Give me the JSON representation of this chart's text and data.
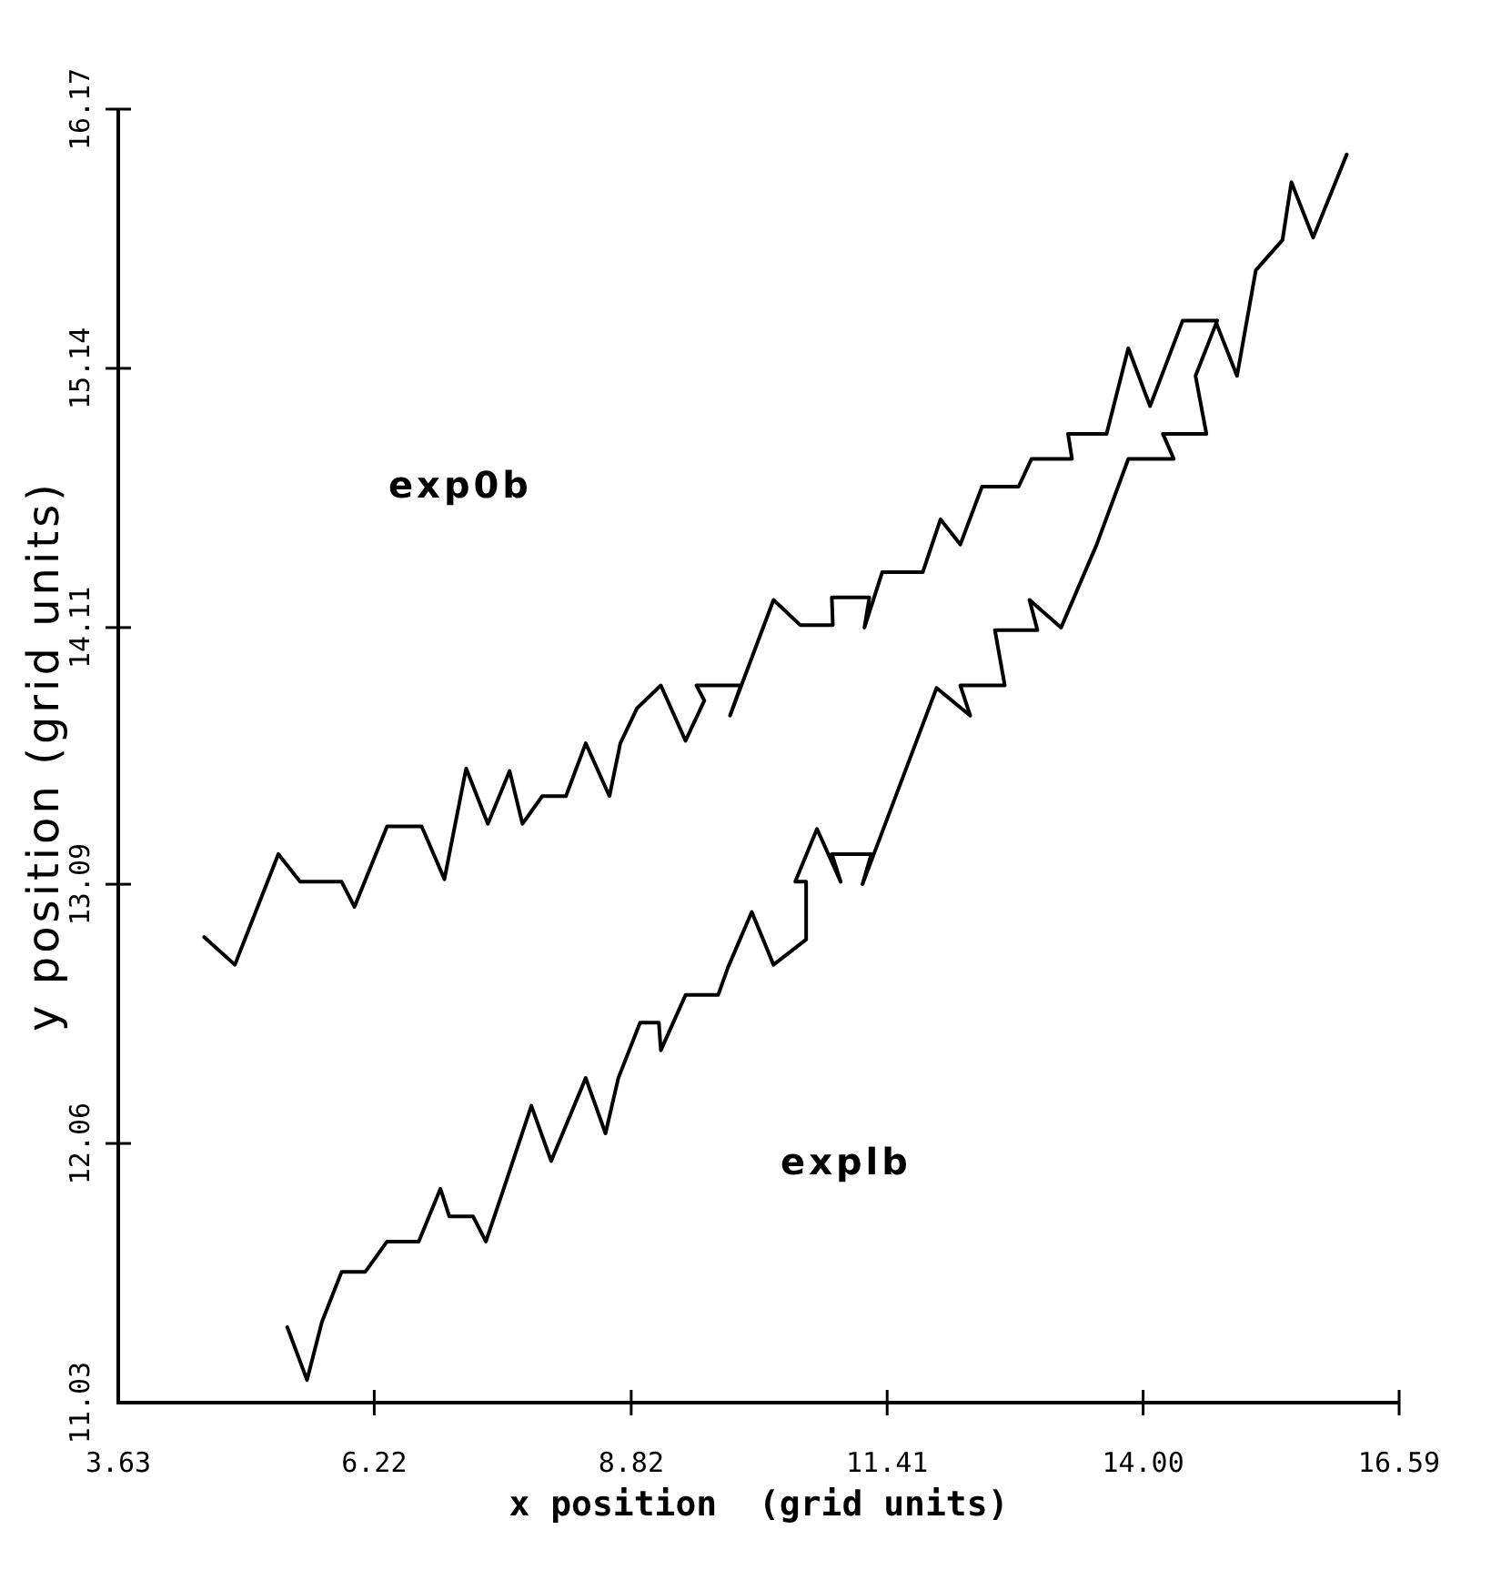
{
  "chart_data": {
    "type": "line",
    "xlabel": "x position  (grid units)",
    "ylabel": "y position (grid units)",
    "xlim": [
      3.63,
      16.59
    ],
    "xticks": [
      3.63,
      6.22,
      8.82,
      11.41,
      {
        "value": 14,
        "label": "14.00"
      },
      16.59
    ],
    "ylim": [
      11.03,
      16.17
    ],
    "yticks": [
      11.03,
      12.06,
      13.09,
      14.11,
      15.14,
      16.17
    ],
    "grid": false,
    "marker": "none",
    "line_style": "solid",
    "series": [
      {
        "color": "#000000",
        "x": [
          4.5,
          4.81,
          5.25,
          5.47,
          5.89,
          6.02,
          6.35,
          6.7,
          6.93,
          7.15,
          7.37,
          7.59,
          7.72,
          7.92,
          8.16,
          8.36,
          8.6,
          8.71,
          8.88,
          9.12,
          9.37,
          9.56,
          9.48,
          9.93,
          9.82,
          10.26,
          10.53,
          10.86,
          10.85,
          11.23,
          11.18,
          11.36,
          11.77,
          11.95,
          12.15,
          12.37,
          12.74,
          12.87,
          13.28,
          13.24,
          13.63,
          13.85,
          14.07,
          14.4,
          14.73,
          14.95,
          15.14,
          15.41,
          15.5,
          15.72,
          16.06
        ],
        "values": [
          12.88,
          12.77,
          13.21,
          13.1,
          13.1,
          13.0,
          13.32,
          13.32,
          13.11,
          13.55,
          13.33,
          13.54,
          13.33,
          13.44,
          13.44,
          13.65,
          13.44,
          13.65,
          13.79,
          13.88,
          13.66,
          13.82,
          13.88,
          13.88,
          13.76,
          14.22,
          14.12,
          14.12,
          14.23,
          14.23,
          14.11,
          14.33,
          14.33,
          14.54,
          14.44,
          14.67,
          14.67,
          14.78,
          14.78,
          14.88,
          14.88,
          15.22,
          14.99,
          15.33,
          15.33,
          15.11,
          15.53,
          15.65,
          15.88,
          15.66,
          15.99
        ]
      },
      {
        "color": "#000000",
        "x": [
          5.34,
          5.54,
          5.69,
          5.89,
          6.13,
          6.35,
          6.67,
          6.89,
          6.98,
          7.22,
          7.35,
          7.53,
          7.81,
          8.01,
          8.36,
          8.56,
          8.69,
          8.91,
          9.1,
          9.12,
          9.37,
          9.7,
          9.8,
          10.04,
          10.26,
          10.59,
          10.59,
          10.48,
          10.7,
          10.94,
          10.85,
          11.25,
          11.16,
          11.91,
          12.25,
          12.15,
          12.6,
          12.5,
          12.93,
          12.85,
          13.17,
          13.53,
          13.85,
          14.31,
          14.2,
          14.64,
          14.53,
          14.75
        ],
        "values": [
          11.33,
          11.12,
          11.35,
          11.55,
          11.55,
          11.67,
          11.67,
          11.88,
          11.77,
          11.77,
          11.67,
          11.88,
          12.21,
          11.99,
          12.32,
          12.1,
          12.32,
          12.54,
          12.54,
          12.43,
          12.65,
          12.65,
          12.76,
          12.98,
          12.77,
          12.87,
          13.1,
          13.1,
          13.31,
          13.1,
          13.21,
          13.21,
          13.09,
          13.87,
          13.76,
          13.88,
          13.88,
          14.1,
          14.1,
          14.22,
          14.11,
          14.44,
          14.78,
          14.78,
          14.88,
          14.88,
          15.11,
          15.33
        ]
      }
    ],
    "annotations": [
      "exp0b",
      "explb"
    ]
  }
}
